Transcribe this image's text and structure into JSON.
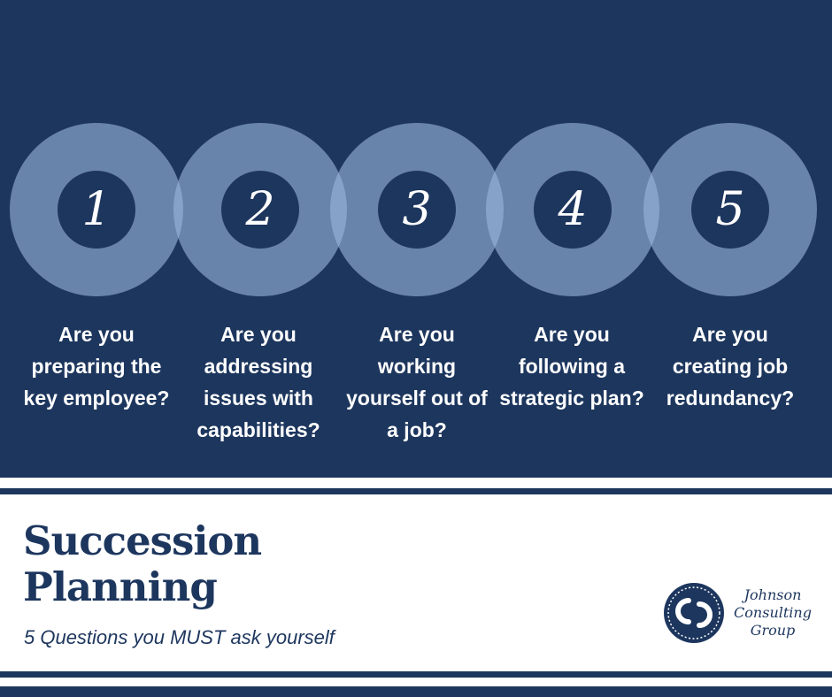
{
  "colors": {
    "navy": "#1d365e",
    "ring": "#98b4dc",
    "white": "#ffffff"
  },
  "steps": [
    {
      "number": "1",
      "question": "Are you preparing the key employee?"
    },
    {
      "number": "2",
      "question": "Are you addressing issues with capabilities?"
    },
    {
      "number": "3",
      "question": "Are you working yourself out of a job?"
    },
    {
      "number": "4",
      "question": "Are you following a strategic plan?"
    },
    {
      "number": "5",
      "question": "Are you creating job redundancy?"
    }
  ],
  "title": {
    "line1": "Succession",
    "line2": "Planning"
  },
  "subtitle": "5 Questions you MUST ask yourself",
  "logo": {
    "line1": "Johnson",
    "line2": "Consulting",
    "line3": "Group"
  }
}
